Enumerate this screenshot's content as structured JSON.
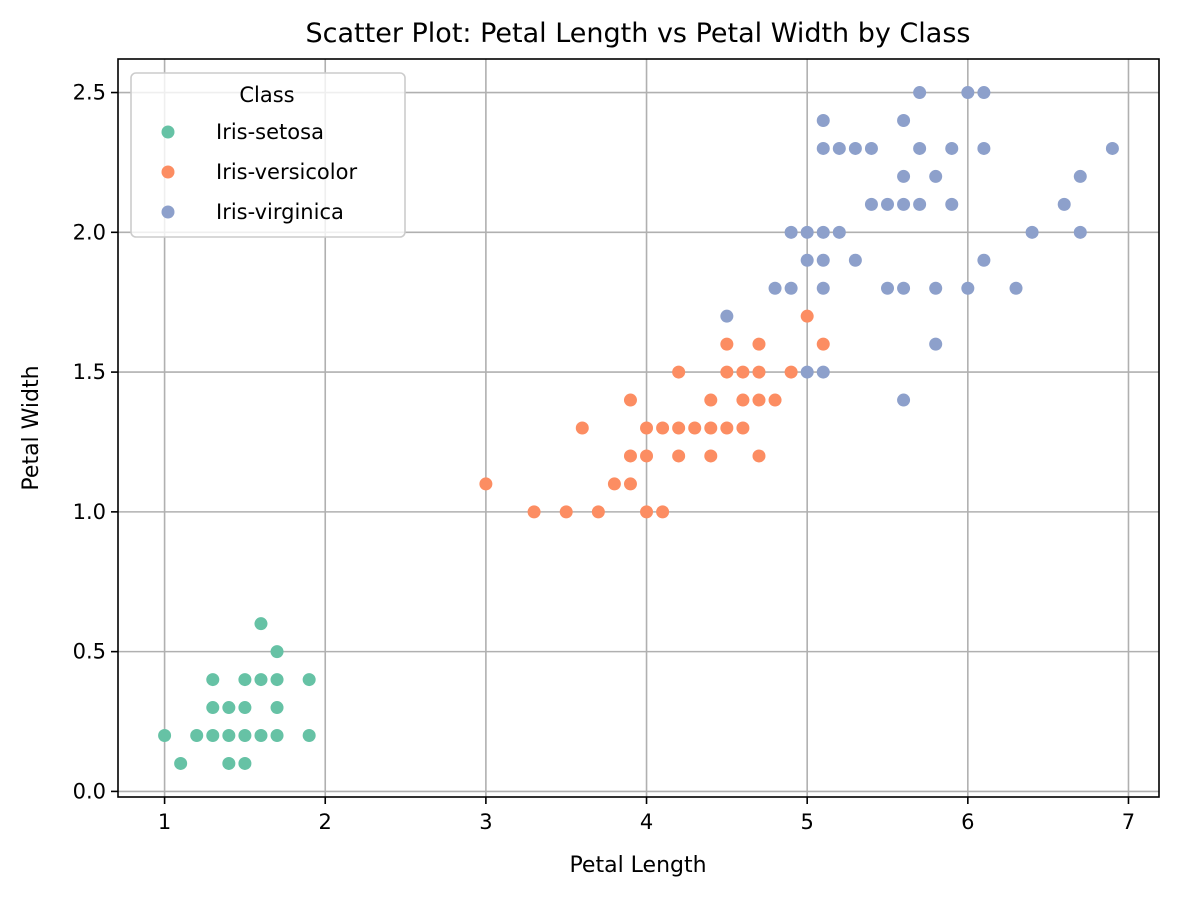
{
  "chart_data": {
    "type": "scatter",
    "title": "Scatter Plot: Petal Length vs Petal Width by Class",
    "xlabel": "Petal Length",
    "ylabel": "Petal Width",
    "xlim": [
      0.71,
      7.19
    ],
    "ylim": [
      -0.02,
      2.62
    ],
    "xticks": [
      1,
      2,
      3,
      4,
      5,
      6,
      7
    ],
    "xtick_labels": [
      "1",
      "2",
      "3",
      "4",
      "5",
      "6",
      "7"
    ],
    "yticks": [
      0.0,
      0.5,
      1.0,
      1.5,
      2.0,
      2.5
    ],
    "ytick_labels": [
      "0.0",
      "0.5",
      "1.0",
      "1.5",
      "2.0",
      "2.5"
    ],
    "grid": true,
    "legend": {
      "title": "Class",
      "placement": "top-left"
    },
    "series": [
      {
        "name": "Iris-setosa",
        "color": "#66c2a5",
        "points": [
          [
            1.0,
            0.2
          ],
          [
            1.1,
            0.1
          ],
          [
            1.2,
            0.2
          ],
          [
            1.3,
            0.2
          ],
          [
            1.3,
            0.3
          ],
          [
            1.3,
            0.4
          ],
          [
            1.4,
            0.1
          ],
          [
            1.4,
            0.2
          ],
          [
            1.4,
            0.3
          ],
          [
            1.5,
            0.1
          ],
          [
            1.5,
            0.2
          ],
          [
            1.5,
            0.3
          ],
          [
            1.5,
            0.4
          ],
          [
            1.6,
            0.2
          ],
          [
            1.6,
            0.4
          ],
          [
            1.6,
            0.6
          ],
          [
            1.7,
            0.2
          ],
          [
            1.7,
            0.3
          ],
          [
            1.7,
            0.4
          ],
          [
            1.7,
            0.5
          ],
          [
            1.9,
            0.2
          ],
          [
            1.9,
            0.4
          ]
        ]
      },
      {
        "name": "Iris-versicolor",
        "color": "#fc8d62",
        "points": [
          [
            3.0,
            1.1
          ],
          [
            3.3,
            1.0
          ],
          [
            3.5,
            1.0
          ],
          [
            3.6,
            1.3
          ],
          [
            3.7,
            1.0
          ],
          [
            3.8,
            1.1
          ],
          [
            3.9,
            1.1
          ],
          [
            3.9,
            1.2
          ],
          [
            3.9,
            1.4
          ],
          [
            4.0,
            1.0
          ],
          [
            4.0,
            1.2
          ],
          [
            4.0,
            1.3
          ],
          [
            4.1,
            1.0
          ],
          [
            4.1,
            1.3
          ],
          [
            4.2,
            1.2
          ],
          [
            4.2,
            1.3
          ],
          [
            4.2,
            1.5
          ],
          [
            4.3,
            1.3
          ],
          [
            4.4,
            1.2
          ],
          [
            4.4,
            1.3
          ],
          [
            4.4,
            1.4
          ],
          [
            4.5,
            1.3
          ],
          [
            4.5,
            1.5
          ],
          [
            4.5,
            1.6
          ],
          [
            4.6,
            1.3
          ],
          [
            4.6,
            1.4
          ],
          [
            4.6,
            1.5
          ],
          [
            4.7,
            1.2
          ],
          [
            4.7,
            1.4
          ],
          [
            4.7,
            1.5
          ],
          [
            4.7,
            1.6
          ],
          [
            4.8,
            1.4
          ],
          [
            4.9,
            1.5
          ],
          [
            5.0,
            1.7
          ],
          [
            5.1,
            1.6
          ]
        ]
      },
      {
        "name": "Iris-virginica",
        "color": "#8da0cb",
        "points": [
          [
            4.5,
            1.7
          ],
          [
            4.8,
            1.8
          ],
          [
            4.9,
            1.8
          ],
          [
            4.9,
            2.0
          ],
          [
            5.0,
            1.5
          ],
          [
            5.0,
            1.9
          ],
          [
            5.0,
            2.0
          ],
          [
            5.1,
            1.5
          ],
          [
            5.1,
            1.8
          ],
          [
            5.1,
            1.9
          ],
          [
            5.1,
            2.0
          ],
          [
            5.1,
            2.3
          ],
          [
            5.1,
            2.4
          ],
          [
            5.2,
            2.0
          ],
          [
            5.2,
            2.3
          ],
          [
            5.3,
            1.9
          ],
          [
            5.3,
            2.3
          ],
          [
            5.4,
            2.1
          ],
          [
            5.4,
            2.3
          ],
          [
            5.5,
            1.8
          ],
          [
            5.5,
            2.1
          ],
          [
            5.6,
            1.4
          ],
          [
            5.6,
            1.8
          ],
          [
            5.6,
            2.1
          ],
          [
            5.6,
            2.2
          ],
          [
            5.6,
            2.4
          ],
          [
            5.7,
            2.1
          ],
          [
            5.7,
            2.3
          ],
          [
            5.7,
            2.5
          ],
          [
            5.8,
            1.6
          ],
          [
            5.8,
            1.8
          ],
          [
            5.8,
            2.2
          ],
          [
            5.9,
            2.1
          ],
          [
            5.9,
            2.3
          ],
          [
            6.0,
            1.8
          ],
          [
            6.0,
            2.5
          ],
          [
            6.1,
            1.9
          ],
          [
            6.1,
            2.3
          ],
          [
            6.1,
            2.5
          ],
          [
            6.3,
            1.8
          ],
          [
            6.4,
            2.0
          ],
          [
            6.6,
            2.1
          ],
          [
            6.7,
            2.0
          ],
          [
            6.7,
            2.2
          ],
          [
            6.9,
            2.3
          ]
        ]
      }
    ]
  }
}
